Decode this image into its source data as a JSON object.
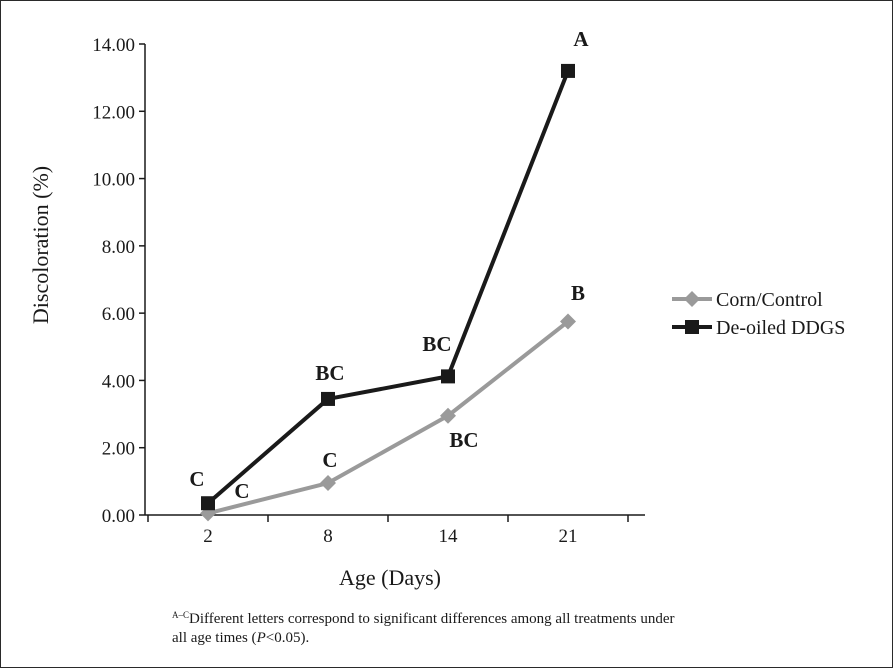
{
  "chart_data": {
    "type": "line",
    "categories": [
      "2",
      "8",
      "14",
      "21"
    ],
    "ylabel": "Discoloration (%)",
    "xlabel": "Age (Days)",
    "ylim": [
      0,
      14
    ],
    "yticks": [
      "0.00",
      "2.00",
      "4.00",
      "6.00",
      "8.00",
      "10.00",
      "12.00",
      "14.00"
    ],
    "grid": false,
    "legend_position": "right",
    "series": [
      {
        "name": "Corn/Control",
        "values": [
          0.05,
          0.95,
          2.95,
          5.75
        ],
        "marker": "diamond",
        "color": "#9a9a9a",
        "significance": [
          "C",
          "C",
          "BC",
          "B"
        ]
      },
      {
        "name": "De-oiled DDGS",
        "values": [
          0.35,
          3.45,
          4.12,
          13.2
        ],
        "marker": "square",
        "color": "#1a1a1a",
        "significance": [
          "C",
          "BC",
          "BC",
          "A"
        ]
      }
    ]
  },
  "footnote": {
    "superscript": "A–C",
    "text_before": "Different letters correspond to significant differences among all treatments under all age times (",
    "italic": "P",
    "text_after": "<0.05)."
  }
}
